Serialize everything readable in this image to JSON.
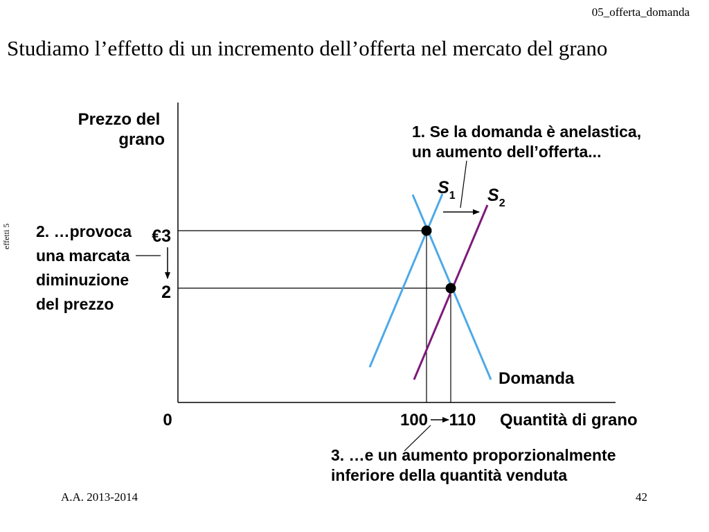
{
  "header": {
    "slide_tag": "05_offerta_domanda",
    "title": "Studiamo l’effetto di un incremento dell’offerta nel mercato del grano"
  },
  "side_label": "effetti 5",
  "footer": {
    "left": "A.A. 2013-2014",
    "right": "42"
  },
  "diagram": {
    "y_axis_label": [
      "Prezzo del",
      "grano"
    ],
    "x_axis_label": "Quantità di grano",
    "origin_label": "0",
    "price_labels": {
      "initial": "€3",
      "final": "2"
    },
    "quantity_labels": {
      "initial": "100",
      "final": "110"
    },
    "curves": {
      "supply_1": {
        "letter": "S",
        "subscript": "1",
        "color": "#4da9e8"
      },
      "supply_2": {
        "letter": "S",
        "subscript": "2",
        "color": "#7d1a7d"
      },
      "demand": {
        "label": "Domanda",
        "color": "#4da9e8"
      }
    },
    "annotations": {
      "step1": [
        "1. Se la domanda è anelastica,",
        "un aumento dell’offerta..."
      ],
      "step2": [
        "2. …provoca",
        "una marcata",
        "diminuzione",
        "del prezzo"
      ],
      "step3": [
        "3. …e un aumento proporzionalmente",
        "inferiore della quantità venduta"
      ]
    },
    "equilibria": [
      {
        "quantity": 100,
        "price": 3
      },
      {
        "quantity": 110,
        "price": 2
      }
    ]
  }
}
